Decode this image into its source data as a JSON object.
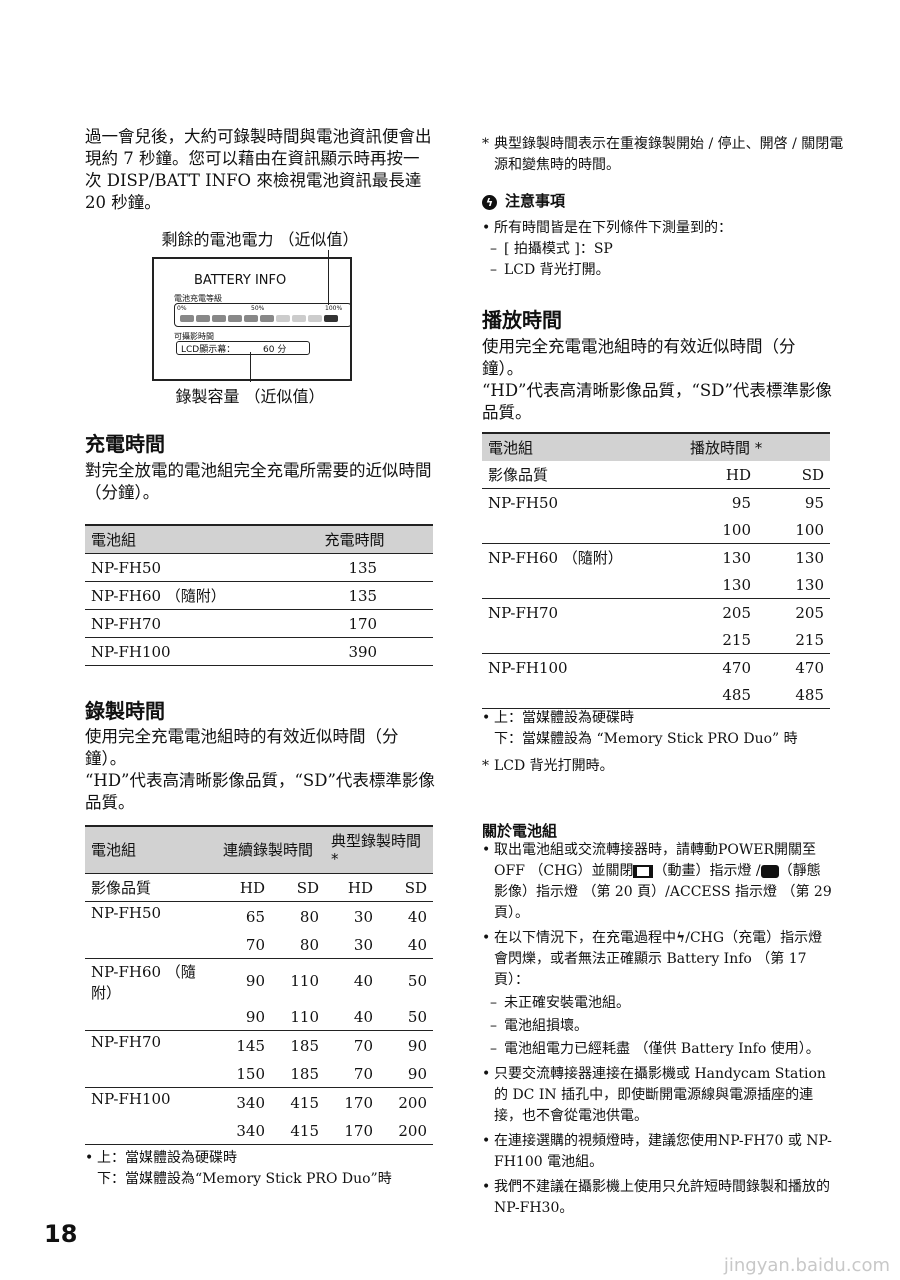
{
  "left": {
    "intro": "過一會兒後，大約可錄製時間與電池資訊便會出現約 7 秒鐘。您可以藉由在資訊顯示時再按一次 DISP/BATT INFO 來檢視電池資訊最長達 20 秒鐘。",
    "figure": {
      "caption_top": "剩餘的電池電力 （近似值）",
      "caption_bottom": "錄製容量 （近似值）",
      "title": "BATTERY INFO",
      "level_label": "電池充電等級",
      "scale": [
        "0%",
        "50%",
        "100%"
      ],
      "level_segments_filled": 6,
      "level_segments_total": 10,
      "time_label": "可攝影時間",
      "lcd_label": "LCD顯示幕：",
      "lcd_value": "60 分"
    },
    "charge": {
      "title": "充電時間",
      "desc": "對完全放電的電池組完全充電所需要的近似時間 （分鐘）。",
      "headers": [
        "電池組",
        "充電時間"
      ],
      "rows": [
        [
          "NP-FH50",
          "135"
        ],
        [
          "NP-FH60 （隨附）",
          "135"
        ],
        [
          "NP-FH70",
          "170"
        ],
        [
          "NP-FH100",
          "390"
        ]
      ]
    },
    "record": {
      "title": "錄製時間",
      "desc1": "使用完全充電電池組時的有效近似時間（分鐘）。",
      "desc2": "“HD”代表高清晰影像品質，“SD”代表標準影像品質。",
      "headers": [
        "電池組",
        "連續錄製時間",
        "典型錄製時間 *"
      ],
      "sub": [
        "影像品質",
        "HD",
        "SD",
        "HD",
        "SD"
      ],
      "rows": [
        {
          "name": "NP-FH50",
          "vals": [
            [
              "65",
              "80",
              "30",
              "40"
            ],
            [
              "70",
              "80",
              "30",
              "40"
            ]
          ]
        },
        {
          "name": "NP-FH60 （隨附）",
          "vals": [
            [
              "90",
              "110",
              "40",
              "50"
            ],
            [
              "90",
              "110",
              "40",
              "50"
            ]
          ]
        },
        {
          "name": "NP-FH70",
          "vals": [
            [
              "145",
              "185",
              "70",
              "90"
            ],
            [
              "150",
              "185",
              "70",
              "90"
            ]
          ]
        },
        {
          "name": "NP-FH100",
          "vals": [
            [
              "340",
              "415",
              "170",
              "200"
            ],
            [
              "340",
              "415",
              "170",
              "200"
            ]
          ]
        }
      ],
      "note1": "上：當媒體設為硬碟時",
      "note2": "下：當媒體設為“Memory Stick PRO Duo”時"
    },
    "page_number": "18"
  },
  "right": {
    "footnote": "典型錄製時間表示在重複錄製開始 / 停止、開啓 / 關閉電源和變焦時的時間。",
    "caution": {
      "title": "注意事項",
      "bullet": "所有時間皆是在下列條件下測量到的：",
      "items": [
        "[ 拍攝模式 ]：SP",
        "LCD 背光打開。"
      ]
    },
    "play": {
      "title": "播放時間",
      "desc1": "使用完全充電電池組時的有效近似時間（分鐘）。",
      "desc2": "“HD”代表高清晰影像品質，“SD”代表標準影像品質。",
      "headers": [
        "電池組",
        "播放時間 *"
      ],
      "sub": [
        "影像品質",
        "HD",
        "SD"
      ],
      "rows": [
        {
          "name": "NP-FH50",
          "vals": [
            [
              "95",
              "95"
            ],
            [
              "100",
              "100"
            ]
          ]
        },
        {
          "name": "NP-FH60 （隨附）",
          "vals": [
            [
              "130",
              "130"
            ],
            [
              "130",
              "130"
            ]
          ]
        },
        {
          "name": "NP-FH70",
          "vals": [
            [
              "205",
              "205"
            ],
            [
              "215",
              "215"
            ]
          ]
        },
        {
          "name": "NP-FH100",
          "vals": [
            [
              "470",
              "470"
            ],
            [
              "485",
              "485"
            ]
          ]
        }
      ],
      "note1": "上：當媒體設為硬碟時",
      "note2": "下：當媒體設為 “Memory Stick PRO Duo” 時",
      "note3": "LCD 背光打開時。"
    },
    "about": {
      "title": "關於電池組",
      "b1a": "取出電池組或交流轉接器時，請轉動POWER開關至 OFF （CHG）並關閉",
      "b1b": "（動畫）指示燈 /",
      "b1c": "（靜態影像）指示燈 （第 20 頁）/ACCESS 指示燈 （第 29 頁）。",
      "b2a": "在以下情況下，在充電過程中",
      "b2b": "/CHG（充電）指示燈會閃爍，或者無法正確顯示 Battery Info （第 17 頁）：",
      "b2items": [
        "未正確安裝電池組。",
        "電池組損壞。",
        "電池組電力已經耗盡 （僅供 Battery Info 使用）。"
      ],
      "b3": "只要交流轉接器連接在攝影機或 Handycam Station 的 DC IN 插孔中，即使斷開電源線與電源插座的連接，也不會從電池供電。",
      "b4": "在連接選購的視頻燈時，建議您使用NP-FH70 或 NP-FH100 電池組。",
      "b5": "我們不建議在攝影機上使用只允許短時間錄製和播放的 NP-FH30。"
    }
  },
  "watermark": "jingyan.baidu.com"
}
